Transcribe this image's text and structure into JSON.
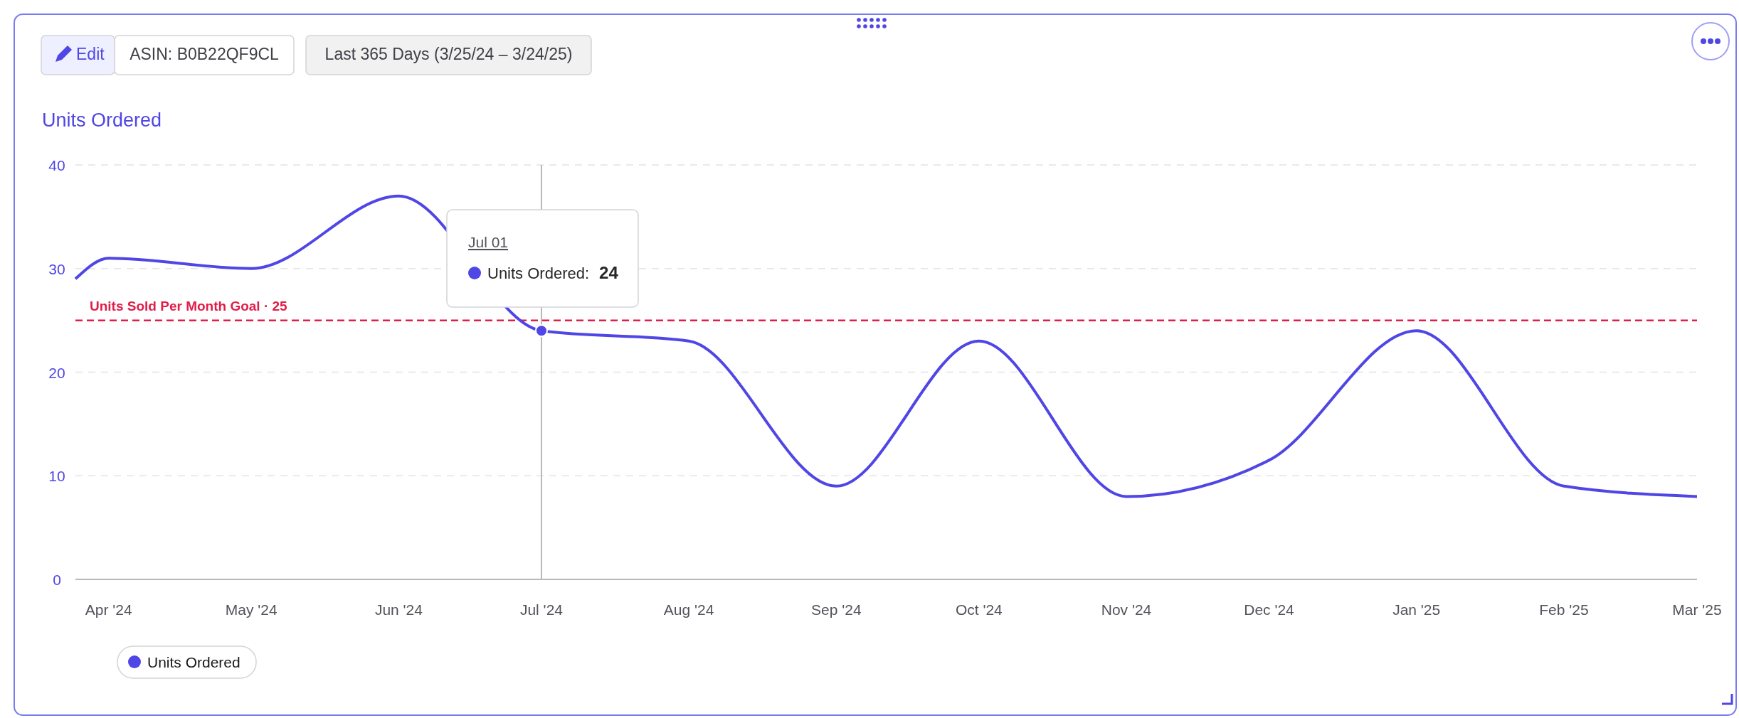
{
  "chart_data": {
    "type": "line",
    "title": "Units Ordered",
    "annotations": [
      "Edit",
      "ASIN: B0B22QF9CL",
      "Last 365 Days (3/25/24 – 3/24/25)",
      "Jul 01",
      {
        "text": "Units Ordered: 24",
        "x": "2024-07-01",
        "y": 24
      }
    ],
    "x": [
      "2024-03-25",
      "2024-04-01",
      "2024-05-01",
      "2024-06-01",
      "2024-07-01",
      "2024-08-01",
      "2024-09-01",
      "2024-10-01",
      "2024-11-01",
      "2024-12-01",
      "2025-01-01",
      "2025-02-01",
      "2025-03-01"
    ],
    "series": [
      {
        "name": "Units Ordered",
        "color": "#4f46e5",
        "values": [
          29,
          31,
          30,
          37,
          24,
          23,
          9,
          23,
          8,
          11.5,
          24,
          9,
          8
        ]
      }
    ],
    "xlim": [
      "2024-03-25",
      "2025-03-01"
    ],
    "xticks": [
      {
        "value": "2024-04-01",
        "label": "Apr '24"
      },
      {
        "value": "2024-05-01",
        "label": "May '24"
      },
      {
        "value": "2024-06-01",
        "label": "Jun '24"
      },
      {
        "value": "2024-07-01",
        "label": "Jul '24"
      },
      {
        "value": "2024-08-01",
        "label": "Aug '24"
      },
      {
        "value": "2024-09-01",
        "label": "Sep '24"
      },
      {
        "value": "2024-10-01",
        "label": "Oct '24"
      },
      {
        "value": "2024-11-01",
        "label": "Nov '24"
      },
      {
        "value": "2024-12-01",
        "label": "Dec '24"
      },
      {
        "value": "2025-01-01",
        "label": "Jan '25"
      },
      {
        "value": "2025-02-01",
        "label": "Feb '25"
      },
      {
        "value": "2025-03-01",
        "label": "Mar '25"
      }
    ],
    "ylim": [
      0,
      40
    ],
    "yticks": [
      0,
      10,
      20,
      30,
      40
    ],
    "grid": "y",
    "legend": "bottom left",
    "marker": "none",
    "line_style": "solid",
    "ref_lines": [
      {
        "axis": "y",
        "value": 25,
        "label": "Units Sold Per Month Goal · 25",
        "color": "#e11d48",
        "line_style": "dashed"
      },
      {
        "axis": "x",
        "value": "2024-07-01",
        "label": null,
        "color": "#b8b8b8",
        "line_style": "solid"
      }
    ]
  }
}
